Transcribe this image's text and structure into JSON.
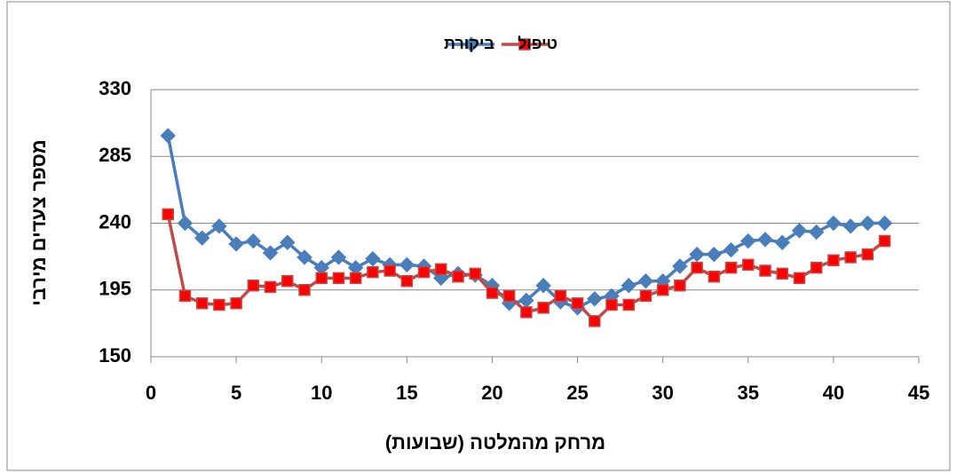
{
  "chart_data": {
    "type": "line",
    "x": [
      1,
      2,
      3,
      4,
      5,
      6,
      7,
      8,
      9,
      10,
      11,
      12,
      13,
      14,
      15,
      16,
      17,
      18,
      19,
      20,
      21,
      22,
      23,
      24,
      25,
      26,
      27,
      28,
      29,
      30,
      31,
      32,
      33,
      34,
      35,
      36,
      37,
      38,
      39,
      40,
      41,
      42,
      43
    ],
    "series": [
      {
        "name": "ביקורת",
        "color": "#4a7ebb",
        "marker": "diamond",
        "values": [
          299,
          240,
          230,
          238,
          226,
          228,
          220,
          227,
          217,
          210,
          217,
          210,
          216,
          212,
          212,
          211,
          203,
          206,
          205,
          198,
          186,
          188,
          198,
          187,
          183,
          189,
          191,
          198,
          201,
          201,
          211,
          219,
          219,
          222,
          228,
          229,
          227,
          235,
          234,
          240,
          238,
          240,
          240
        ]
      },
      {
        "name": "טיפול",
        "color": "#be4b48",
        "marker": "square",
        "values": [
          246,
          191,
          186,
          185,
          186,
          198,
          197,
          201,
          195,
          203,
          203,
          203,
          207,
          208,
          201,
          207,
          209,
          204,
          206,
          193,
          191,
          180,
          183,
          191,
          186,
          174,
          185,
          185,
          191,
          195,
          198,
          210,
          204,
          210,
          212,
          208,
          206,
          203,
          210,
          215,
          217,
          219,
          228
        ]
      }
    ],
    "xlim": [
      0,
      45
    ],
    "xticks": [
      0,
      5,
      10,
      15,
      20,
      25,
      30,
      35,
      40,
      45
    ],
    "ylim": [
      150,
      330
    ],
    "yticks": [
      150,
      195,
      240,
      285,
      330
    ],
    "xlabel": "מרחק מהמלטה (שבועות)",
    "ylabel": "מספר צעדים מירבי",
    "grid": true,
    "legend": "top"
  }
}
